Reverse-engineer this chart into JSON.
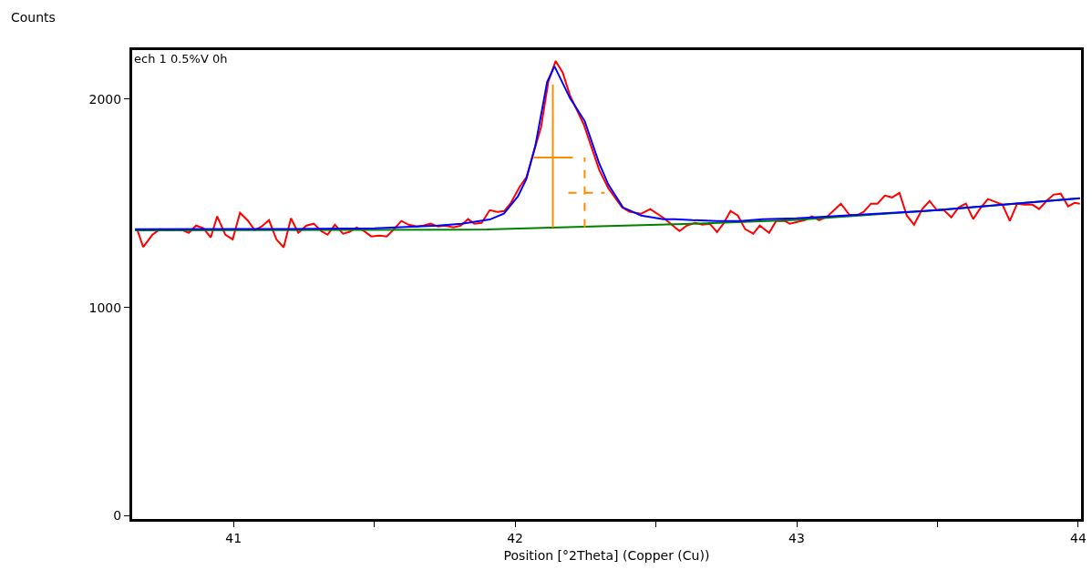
{
  "chart_data": {
    "type": "line",
    "xlabel": "Position [°2Theta] (Copper (Cu))",
    "ylabel": "Counts",
    "annotations": [
      "ech 1 0.5%V 0h"
    ],
    "xlim": [
      40.64,
      44.01
    ],
    "ylim": [
      -15,
      2235
    ],
    "xticks": [
      41,
      {
        "value": 41.5,
        "label": null
      },
      42,
      {
        "value": 42.5,
        "label": null
      },
      43,
      {
        "value": 43.5,
        "label": null
      },
      44
    ],
    "yticks": [
      0,
      1000,
      2000
    ],
    "grid": false,
    "series": [
      {
        "color": "#ff0000",
        "line_style": "solid",
        "x": [
          40.657,
          40.679,
          40.712,
          40.738,
          40.764,
          40.819,
          40.841,
          40.867,
          40.893,
          40.919,
          40.942,
          40.971,
          40.997,
          41.023,
          41.052,
          41.075,
          41.1,
          41.126,
          41.152,
          41.178,
          41.204,
          41.23,
          41.259,
          41.285,
          41.311,
          41.334,
          41.36,
          41.389,
          41.411,
          41.437,
          41.463,
          41.489,
          41.518,
          41.544,
          41.57,
          41.596,
          41.622,
          41.651,
          41.674,
          41.7,
          41.726,
          41.752,
          41.781,
          41.807,
          41.833,
          41.855,
          41.881,
          41.91,
          41.936,
          41.962,
          41.985,
          42.017,
          42.04,
          42.092,
          42.118,
          42.144,
          42.169,
          42.195,
          42.244,
          42.299,
          42.331,
          42.38,
          42.406,
          42.448,
          42.48,
          42.529,
          42.568,
          42.584,
          42.61,
          42.639,
          42.665,
          42.691,
          42.717,
          42.74,
          42.765,
          42.791,
          42.817,
          42.846,
          42.869,
          42.902,
          42.927,
          42.957,
          42.976,
          43.028,
          43.054,
          43.08,
          43.109,
          43.157,
          43.187,
          43.213,
          43.238,
          43.264,
          43.287,
          43.313,
          43.339,
          43.365,
          43.391,
          43.417,
          43.446,
          43.472,
          43.498,
          43.523,
          43.549,
          43.575,
          43.601,
          43.627,
          43.65,
          43.679,
          43.705,
          43.731,
          43.757,
          43.783,
          43.809,
          43.838,
          43.861,
          43.887,
          43.912,
          43.938,
          43.964,
          43.987,
          44.006
        ],
        "values": [
          1377,
          1290,
          1349,
          1375,
          1371,
          1371,
          1358,
          1393,
          1380,
          1336,
          1437,
          1349,
          1327,
          1454,
          1415,
          1371,
          1389,
          1419,
          1327,
          1288,
          1428,
          1358,
          1393,
          1402,
          1367,
          1349,
          1397,
          1354,
          1362,
          1384,
          1367,
          1341,
          1345,
          1341,
          1376,
          1415,
          1397,
          1389,
          1393,
          1402,
          1389,
          1393,
          1384,
          1393,
          1424,
          1402,
          1406,
          1467,
          1459,
          1463,
          1502,
          1581,
          1624,
          1865,
          2083,
          2183,
          2127,
          2017,
          1878,
          1659,
          1572,
          1480,
          1459,
          1450,
          1472,
          1428,
          1384,
          1367,
          1393,
          1406,
          1397,
          1402,
          1362,
          1402,
          1463,
          1441,
          1376,
          1354,
          1393,
          1358,
          1415,
          1415,
          1402,
          1419,
          1437,
          1419,
          1437,
          1498,
          1445,
          1441,
          1459,
          1498,
          1498,
          1537,
          1528,
          1550,
          1441,
          1397,
          1472,
          1511,
          1467,
          1467,
          1432,
          1480,
          1498,
          1424,
          1472,
          1520,
          1507,
          1493,
          1415,
          1498,
          1493,
          1493,
          1472,
          1511,
          1541,
          1546,
          1485,
          1502,
          1498
        ]
      },
      {
        "color": "#008000",
        "line_style": "solid",
        "x": [
          40.65,
          41.9,
          42.3,
          42.6,
          43.0,
          43.5,
          44.006
        ],
        "values": [
          1370,
          1374,
          1390,
          1400,
          1420,
          1467,
          1524
        ]
      },
      {
        "color": "#0000ff",
        "line_style": "solid",
        "x": [
          40.65,
          41.2,
          41.5,
          41.726,
          41.81,
          41.91,
          41.96,
          42.01,
          42.04,
          42.072,
          42.114,
          42.14,
          42.195,
          42.247,
          42.299,
          42.331,
          42.383,
          42.448,
          42.526,
          42.568,
          42.63,
          42.717,
          42.801,
          42.879,
          43.0,
          43.5,
          44.006
        ],
        "values": [
          1375,
          1377,
          1380,
          1393,
          1402,
          1422,
          1450,
          1533,
          1616,
          1777,
          2083,
          2157,
          2004,
          1895,
          1690,
          1590,
          1480,
          1441,
          1424,
          1424,
          1419,
          1415,
          1415,
          1424,
          1428,
          1467,
          1524
        ]
      },
      {
        "color": "#ff8c00",
        "line_style": "solid",
        "x": [
          42.134,
          42.134
        ],
        "values": [
          1384,
          2070
        ]
      },
      {
        "color": "#ff8c00",
        "line_style": "solid",
        "x": [
          42.066,
          42.205
        ],
        "values": [
          1720,
          1720
        ]
      },
      {
        "color": "#ff8c00",
        "line_style": "dashed",
        "x": [
          42.247,
          42.247
        ],
        "values": [
          1384,
          1720
        ]
      },
      {
        "color": "#ff8c00",
        "line_style": "dashed",
        "x": [
          42.189,
          42.318
        ],
        "values": [
          1550,
          1550
        ]
      }
    ]
  }
}
